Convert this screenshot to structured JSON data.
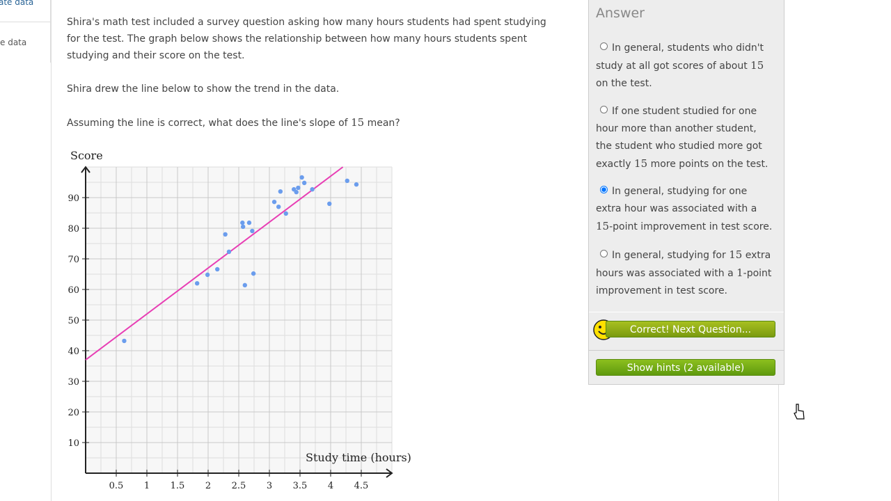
{
  "sidebar": {
    "items": [
      "ate data",
      "e data"
    ]
  },
  "question": {
    "paragraphs": [
      [
        "Shira's math test included a survey question asking how many hours students had spent studying for the test. The graph below shows the relationship between how many hours students spent studying and their score on the test."
      ],
      [
        "Shira drew the line below to show the trend in the data."
      ],
      [
        "Assuming the line is correct, what does the line's slope of ",
        "15",
        " mean?"
      ]
    ]
  },
  "chart_data": {
    "type": "scatter",
    "y_label": "Score",
    "x_label": "Study time (hours)",
    "x": [
      0.63,
      1.82,
      1.99,
      2.15,
      2.28,
      2.34,
      2.56,
      2.57,
      2.67,
      2.72,
      2.6,
      2.74,
      3.08,
      3.15,
      3.18,
      3.27,
      3.4,
      3.44,
      3.47,
      3.53,
      3.57,
      3.7,
      3.98,
      4.27,
      4.42
    ],
    "values": [
      43.2,
      62,
      64.8,
      66.6,
      78,
      72.3,
      81.8,
      80.5,
      81.8,
      79.1,
      61.4,
      65.2,
      88.6,
      87,
      92,
      84.8,
      92.7,
      91.8,
      93.2,
      96.6,
      94.8,
      92.7,
      88,
      95.5,
      94.3
    ],
    "color": "#6b9ded",
    "trend_line": {
      "intercept": 37,
      "slope": 15,
      "color": "#e83eb4"
    },
    "xlim": [
      0,
      5
    ],
    "ylim": [
      0,
      100
    ],
    "xticks": [
      0.5,
      1,
      1.5,
      2,
      2.5,
      3,
      3.5,
      4,
      4.5
    ],
    "yticks": [
      10,
      20,
      30,
      40,
      50,
      60,
      70,
      80,
      90
    ],
    "grid": true,
    "minor_grid_step": {
      "x": 0.25,
      "y": 5
    }
  },
  "answer": {
    "title": "Answer",
    "selected": 2,
    "choices": [
      [
        "In general, students who didn't study at all got scores of about ",
        "15",
        " on the test."
      ],
      [
        "If one student studied for one hour more than another student, the student who studied more got exactly ",
        "15",
        " more points on the test."
      ],
      [
        "In general, studying for one extra hour was associated with a ",
        "15",
        "-point improvement in test score."
      ],
      [
        "In general, studying for ",
        "15",
        " extra hours was associated with a ",
        "1",
        "-point improvement in test score."
      ]
    ],
    "correct_button": "Correct! Next Question...",
    "hints_button": "Show hints (2 available)"
  }
}
